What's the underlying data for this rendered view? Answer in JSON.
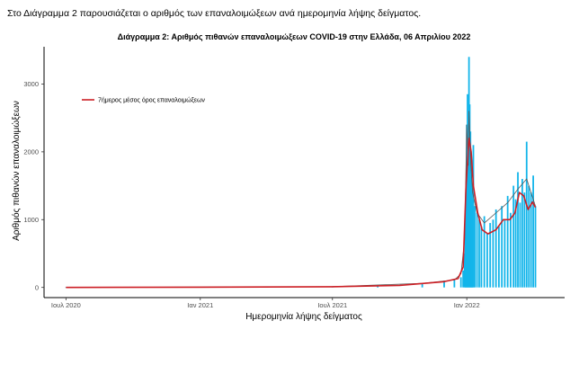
{
  "intro_text": "Στο Διάγραμμα 2 παρουσιάζεται ο αριθμός των επαναλοιμώξεων ανά ημερομηνία λήψης δείγματος.",
  "chart_data": {
    "type": "bar",
    "title": "Διάγραμμα 2: Αριθμός πιθανών επαναλοιμώξεων COVID-19 στην Ελλάδα, 06 Απριλίου 2022",
    "xlabel": "Ημερομηνία λήψης δείγματος",
    "ylabel": "Αριθμός πιθανών επαναλοιμώξεων",
    "ylim": [
      -150,
      3550
    ],
    "xlim": [
      "2020-06-01",
      "2022-05-15"
    ],
    "yticks": [
      0,
      1000,
      2000,
      3000
    ],
    "xticks": [
      {
        "date": "2020-07-01",
        "label": "Ιουλ 2020"
      },
      {
        "date": "2021-01-01",
        "label": "Ιαν 2021"
      },
      {
        "date": "2021-07-01",
        "label": "Ιουλ 2021"
      },
      {
        "date": "2022-01-01",
        "label": "Ιαν 2022"
      }
    ],
    "grid": false,
    "legend_position": "top-left",
    "colors": {
      "bars": "#13b5ea",
      "daily_line": "#555555",
      "avg_line": "#cc1f25"
    },
    "series": [
      {
        "name": "",
        "kind": "bar",
        "x": [
          "2020-07-01",
          "2020-10-01",
          "2021-01-01",
          "2021-04-01",
          "2021-07-01",
          "2021-09-01",
          "2021-11-01",
          "2021-12-01",
          "2021-12-15",
          "2021-12-24",
          "2021-12-27",
          "2021-12-29",
          "2021-12-30",
          "2021-12-31",
          "2022-01-01",
          "2022-01-02",
          "2022-01-03",
          "2022-01-04",
          "2022-01-05",
          "2022-01-06",
          "2022-01-07",
          "2022-01-08",
          "2022-01-09",
          "2022-01-10",
          "2022-01-12",
          "2022-01-15",
          "2022-01-18",
          "2022-01-21",
          "2022-01-25",
          "2022-01-29",
          "2022-02-02",
          "2022-02-06",
          "2022-02-10",
          "2022-02-14",
          "2022-02-18",
          "2022-02-22",
          "2022-02-26",
          "2022-03-02",
          "2022-03-06",
          "2022-03-09",
          "2022-03-12",
          "2022-03-15",
          "2022-03-18",
          "2022-03-21",
          "2022-03-24",
          "2022-03-27",
          "2022-03-30",
          "2022-04-02",
          "2022-04-05"
        ],
        "values": [
          0,
          2,
          5,
          8,
          12,
          25,
          60,
          100,
          110,
          150,
          250,
          500,
          900,
          1400,
          2400,
          2850,
          2000,
          3400,
          2700,
          2300,
          1900,
          1500,
          1300,
          2100,
          1200,
          1100,
          1000,
          900,
          1050,
          800,
          950,
          1000,
          1150,
          900,
          1200,
          1000,
          1350,
          1100,
          1500,
          1300,
          1700,
          1250,
          1600,
          1400,
          2150,
          1500,
          1400,
          1650,
          1200
        ]
      },
      {
        "name": "",
        "kind": "line-daily",
        "x": [
          "2020-07-01",
          "2021-01-01",
          "2021-07-01",
          "2021-11-01",
          "2021-12-15",
          "2021-12-24",
          "2021-12-29",
          "2022-01-01",
          "2022-01-03",
          "2022-01-04",
          "2022-01-06",
          "2022-01-09",
          "2022-01-15",
          "2022-01-25",
          "2022-02-10",
          "2022-02-26",
          "2022-03-12",
          "2022-03-24",
          "2022-04-05"
        ],
        "values": [
          0,
          5,
          12,
          60,
          110,
          200,
          700,
          2400,
          1800,
          2600,
          1900,
          1400,
          1100,
          950,
          1100,
          1250,
          1450,
          1600,
          1200
        ]
      },
      {
        "name": "7ήμερος μέσος όρος επαναλοιμώξεων",
        "kind": "line-avg",
        "x": [
          "2020-07-01",
          "2021-01-01",
          "2021-07-01",
          "2021-10-01",
          "2021-12-01",
          "2021-12-20",
          "2021-12-27",
          "2021-12-31",
          "2022-01-04",
          "2022-01-07",
          "2022-01-10",
          "2022-01-16",
          "2022-01-22",
          "2022-01-30",
          "2022-02-10",
          "2022-02-20",
          "2022-03-01",
          "2022-03-08",
          "2022-03-14",
          "2022-03-20",
          "2022-03-26",
          "2022-04-01",
          "2022-04-05"
        ],
        "values": [
          0,
          4,
          10,
          30,
          85,
          130,
          300,
          1500,
          2200,
          2000,
          1500,
          1100,
          850,
          790,
          850,
          1000,
          1000,
          1100,
          1400,
          1350,
          1150,
          1260,
          1180
        ]
      }
    ]
  }
}
